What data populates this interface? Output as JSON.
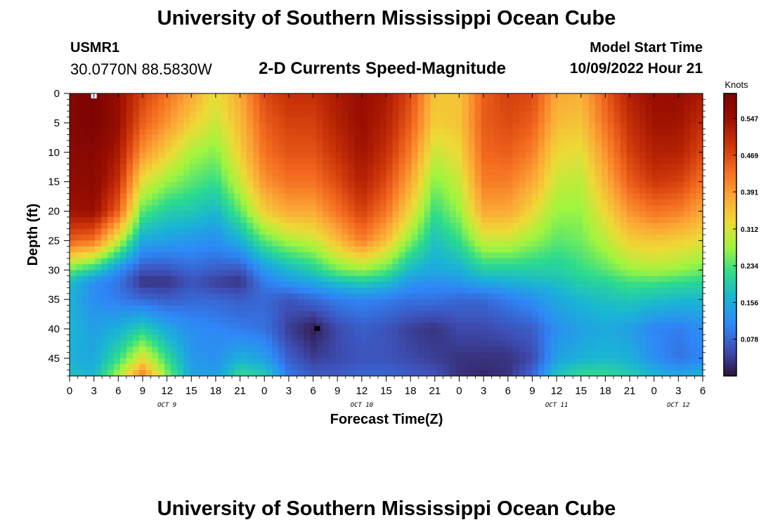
{
  "header": {
    "title": "University of Southern Mississippi Ocean Cube",
    "station_id": "USMR1",
    "coordinates": "30.0770N  88.5830W",
    "plot_title": "2-D Currents Speed-Magnitude",
    "model_start_label": "Model Start Time",
    "model_start_value": "10/09/2022 Hour 21"
  },
  "footer": {
    "title": "University of Southern Mississippi Ocean Cube"
  },
  "chart_data": {
    "type": "heatmap",
    "title": "2-D Currents Speed-Magnitude",
    "xlabel": "Forecast Time(Z)",
    "ylabel": "Depth (ft)",
    "x_tick_labels": [
      "0",
      "3",
      "6",
      "9",
      "12",
      "15",
      "18",
      "21",
      "0",
      "3",
      "6",
      "9",
      "12",
      "15",
      "18",
      "21",
      "0",
      "3",
      "6",
      "9",
      "12",
      "15",
      "18",
      "21",
      "0",
      "3",
      "6"
    ],
    "x_hours": [
      0,
      3,
      6,
      9,
      12,
      15,
      18,
      21,
      24,
      27,
      30,
      33,
      36,
      39,
      42,
      45,
      48,
      51,
      54,
      57,
      60,
      63,
      66,
      69,
      72,
      75,
      78
    ],
    "date_labels": [
      {
        "label": "OCT 9",
        "hour": 12
      },
      {
        "label": "OCT 10",
        "hour": 36
      },
      {
        "label": "OCT 11",
        "hour": 60
      },
      {
        "label": "OCT 12",
        "hour": 75
      }
    ],
    "y_ticks": [
      0,
      5,
      10,
      15,
      20,
      25,
      30,
      35,
      40,
      45
    ],
    "ylim": [
      0,
      48
    ],
    "xlim": [
      0,
      78
    ],
    "y_inverted": true,
    "colorbar": {
      "title": "Knots",
      "ticks": [
        0.078,
        0.156,
        0.234,
        0.312,
        0.391,
        0.469,
        0.547
      ],
      "range": [
        0.0,
        0.6
      ],
      "colormap": [
        "#30123b",
        "#3e4eb5",
        "#2f86f7",
        "#1ab3d6",
        "#2cdb8d",
        "#a0f53f",
        "#eeda36",
        "#fca636",
        "#f36b1f",
        "#cd3509",
        "#9b0f01",
        "#7a0403"
      ]
    },
    "time_hours": [
      0,
      3,
      6,
      9,
      12,
      15,
      18,
      21,
      24,
      27,
      30,
      33,
      36,
      39,
      42,
      45,
      48,
      51,
      54,
      57,
      60,
      63,
      66,
      69,
      72,
      75,
      78
    ],
    "depths_ft": [
      0,
      5,
      10,
      15,
      20,
      25,
      30,
      32,
      35,
      40,
      45,
      48
    ],
    "speed_knots": [
      [
        0.58,
        0.6,
        0.55,
        0.48,
        0.43,
        0.38,
        0.32,
        0.38,
        0.47,
        0.5,
        0.5,
        0.53,
        0.55,
        0.53,
        0.47,
        0.35,
        0.35,
        0.45,
        0.48,
        0.47,
        0.38,
        0.37,
        0.45,
        0.52,
        0.55,
        0.55,
        0.53
      ],
      [
        0.58,
        0.6,
        0.55,
        0.45,
        0.4,
        0.34,
        0.3,
        0.36,
        0.45,
        0.48,
        0.48,
        0.52,
        0.55,
        0.52,
        0.45,
        0.34,
        0.35,
        0.45,
        0.47,
        0.45,
        0.36,
        0.35,
        0.43,
        0.5,
        0.54,
        0.54,
        0.5
      ],
      [
        0.57,
        0.58,
        0.53,
        0.4,
        0.34,
        0.28,
        0.26,
        0.34,
        0.43,
        0.46,
        0.46,
        0.5,
        0.54,
        0.5,
        0.42,
        0.3,
        0.33,
        0.44,
        0.45,
        0.42,
        0.33,
        0.32,
        0.4,
        0.48,
        0.52,
        0.52,
        0.47
      ],
      [
        0.56,
        0.57,
        0.5,
        0.32,
        0.27,
        0.24,
        0.22,
        0.3,
        0.4,
        0.43,
        0.43,
        0.47,
        0.52,
        0.47,
        0.38,
        0.26,
        0.3,
        0.42,
        0.42,
        0.38,
        0.3,
        0.29,
        0.37,
        0.45,
        0.49,
        0.48,
        0.43
      ],
      [
        0.54,
        0.55,
        0.45,
        0.24,
        0.2,
        0.19,
        0.17,
        0.24,
        0.34,
        0.38,
        0.38,
        0.43,
        0.48,
        0.43,
        0.33,
        0.22,
        0.27,
        0.38,
        0.38,
        0.33,
        0.27,
        0.27,
        0.33,
        0.4,
        0.43,
        0.42,
        0.38
      ],
      [
        0.45,
        0.43,
        0.3,
        0.15,
        0.14,
        0.13,
        0.12,
        0.16,
        0.24,
        0.28,
        0.3,
        0.36,
        0.42,
        0.36,
        0.26,
        0.18,
        0.22,
        0.3,
        0.3,
        0.27,
        0.24,
        0.25,
        0.29,
        0.34,
        0.35,
        0.34,
        0.32
      ],
      [
        0.25,
        0.2,
        0.12,
        0.06,
        0.06,
        0.08,
        0.07,
        0.06,
        0.13,
        0.17,
        0.2,
        0.25,
        0.27,
        0.24,
        0.17,
        0.15,
        0.16,
        0.2,
        0.2,
        0.2,
        0.2,
        0.22,
        0.24,
        0.27,
        0.28,
        0.27,
        0.25
      ],
      [
        0.18,
        0.12,
        0.09,
        0.03,
        0.03,
        0.06,
        0.04,
        0.03,
        0.1,
        0.13,
        0.15,
        0.18,
        0.2,
        0.18,
        0.13,
        0.12,
        0.13,
        0.15,
        0.16,
        0.17,
        0.18,
        0.2,
        0.21,
        0.23,
        0.23,
        0.22,
        0.21
      ],
      [
        0.16,
        0.12,
        0.1,
        0.08,
        0.07,
        0.08,
        0.08,
        0.07,
        0.08,
        0.06,
        0.08,
        0.1,
        0.11,
        0.1,
        0.09,
        0.09,
        0.08,
        0.08,
        0.1,
        0.12,
        0.15,
        0.17,
        0.18,
        0.19,
        0.18,
        0.17,
        0.17
      ],
      [
        0.17,
        0.14,
        0.16,
        0.2,
        0.15,
        0.12,
        0.11,
        0.1,
        0.09,
        0.04,
        0.01,
        0.05,
        0.07,
        0.06,
        0.04,
        0.03,
        0.05,
        0.05,
        0.06,
        0.07,
        0.12,
        0.14,
        0.15,
        0.14,
        0.11,
        0.1,
        0.12
      ],
      [
        0.16,
        0.15,
        0.22,
        0.32,
        0.22,
        0.13,
        0.12,
        0.16,
        0.14,
        0.07,
        0.04,
        0.05,
        0.06,
        0.06,
        0.05,
        0.04,
        0.03,
        0.03,
        0.03,
        0.05,
        0.14,
        0.16,
        0.17,
        0.16,
        0.12,
        0.09,
        0.11
      ],
      [
        0.18,
        0.17,
        0.28,
        0.42,
        0.26,
        0.15,
        0.14,
        0.22,
        0.2,
        0.1,
        0.07,
        0.07,
        0.08,
        0.08,
        0.07,
        0.06,
        0.03,
        0.02,
        0.03,
        0.08,
        0.19,
        0.22,
        0.22,
        0.2,
        0.17,
        0.15,
        0.17
      ]
    ],
    "markers": [
      {
        "name": "max-marker",
        "hour": 3,
        "depth": 0,
        "color": "#ffffff"
      },
      {
        "name": "min-marker",
        "hour": 30.5,
        "depth": 40,
        "color": "#000000"
      }
    ]
  }
}
